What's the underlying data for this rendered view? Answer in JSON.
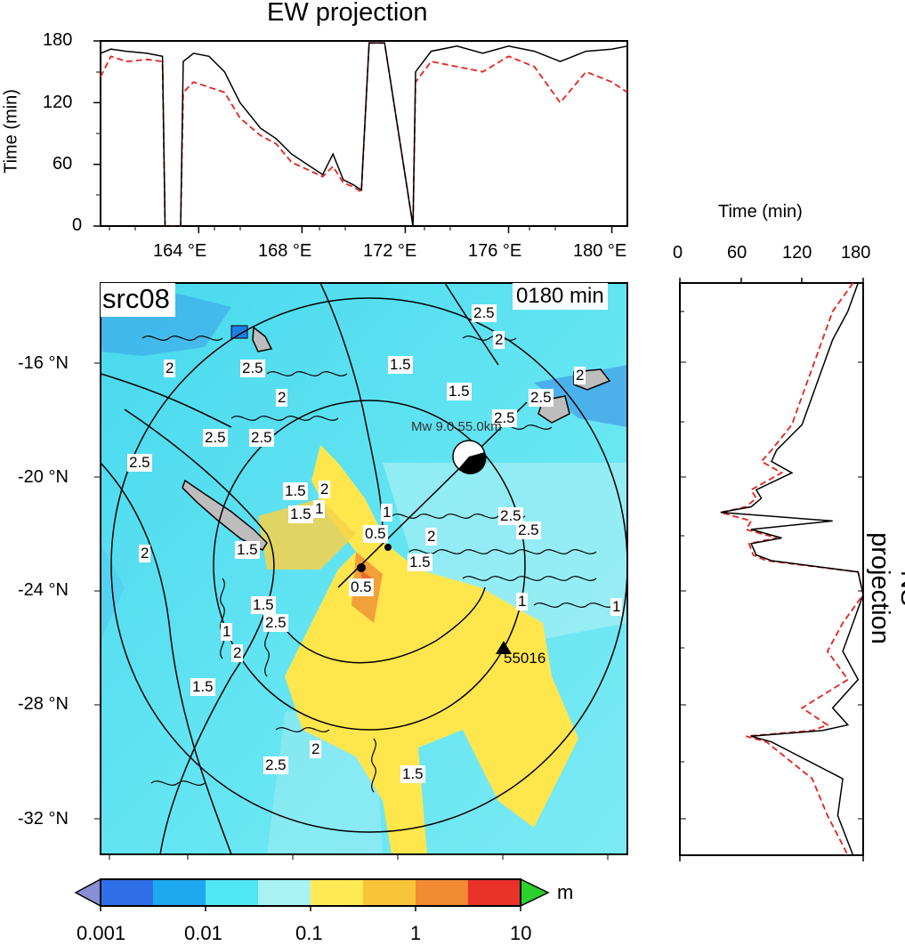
{
  "top_panel": {
    "title": "EW projection",
    "ylabel": "Time (min)",
    "yticks": [
      "0",
      "60",
      "120",
      "180"
    ],
    "xticks": [
      "164 °E",
      "168 °E",
      "172 °E",
      "176 °E",
      "180 °E"
    ]
  },
  "side_panel": {
    "title": "NS projection",
    "xlabel": "Time (min)",
    "xticks": [
      "0",
      "60",
      "120",
      "180"
    ]
  },
  "map": {
    "source_label": "src08",
    "time_label": "0180 min",
    "yticks": [
      "-16 °N",
      "-20 °N",
      "-24 °N",
      "-28 °N",
      "-32 °N"
    ],
    "event_label": "Mw 9.0 55.0km",
    "station_label": "55016",
    "contour_labels": [
      "2.5",
      "2",
      "1.5",
      "2",
      "2.5",
      "2",
      "1.5",
      "2.5",
      "2",
      "2.5",
      "2.5",
      "2.5",
      "2.5",
      "2",
      "1.5",
      "1",
      "1.5",
      "0.5",
      "1",
      "2.5",
      "2",
      "2.5",
      "1.5",
      "0.5",
      "1.5",
      "2",
      "1",
      "2",
      "1.5",
      "2.5",
      "2",
      "1.5",
      "1",
      "2.5",
      "1",
      "2",
      "1.5"
    ]
  },
  "colorbar": {
    "unit": "m",
    "ticks": [
      "0.001",
      "0.01",
      "0.1",
      "1",
      "10"
    ],
    "colors": [
      "#2f6fe8",
      "#1ea8f0",
      "#50e6f2",
      "#a8f2f4",
      "#ffea55",
      "#f8c43a",
      "#f28a33",
      "#e8322a"
    ]
  },
  "chart_data": [
    {
      "type": "line",
      "title": "EW projection",
      "xlabel": "",
      "ylabel": "Time (min)",
      "xlim": [
        160.2,
        180.6
      ],
      "ylim": [
        0,
        180
      ],
      "series": [
        {
          "x": [
            160.2,
            160.6,
            161.2,
            162.0,
            162.6,
            162.7,
            163.3,
            163.4,
            163.8,
            164.4,
            165.0,
            165.6,
            166.4,
            167.0,
            167.6,
            168.2,
            168.8,
            169.2,
            169.6,
            170.0,
            170.3,
            170.6,
            171.2,
            172.3,
            172.4,
            173.0,
            174.0,
            175.0,
            176.0,
            177.0,
            178.0,
            179.0,
            180.0,
            180.6
          ],
          "y": [
            168,
            172,
            170,
            168,
            165,
            0,
            0,
            160,
            168,
            165,
            150,
            120,
            95,
            85,
            70,
            60,
            50,
            70,
            45,
            40,
            35,
            178,
            178,
            0,
            150,
            170,
            175,
            168,
            175,
            170,
            160,
            170,
            172,
            175
          ]
        },
        {
          "x": [
            160.2,
            160.6,
            161.2,
            162.0,
            162.6,
            162.7,
            163.3,
            163.4,
            163.8,
            164.4,
            165.0,
            165.6,
            166.4,
            167.0,
            167.6,
            168.2,
            168.8,
            169.2,
            169.6,
            170.0,
            170.3,
            170.6,
            171.2,
            172.3,
            172.4,
            173.0,
            174.0,
            175.0,
            176.0,
            177.0,
            178.0,
            179.0,
            180.0,
            180.6
          ],
          "y": [
            145,
            165,
            160,
            162,
            160,
            0,
            0,
            130,
            140,
            135,
            130,
            105,
            88,
            80,
            62,
            55,
            48,
            58,
            42,
            38,
            33,
            178,
            178,
            0,
            140,
            160,
            155,
            150,
            165,
            155,
            120,
            150,
            140,
            130
          ]
        }
      ]
    },
    {
      "type": "line",
      "title": "NS projection",
      "xlabel": "Time (min)",
      "ylabel": "",
      "xlim": [
        0,
        180
      ],
      "ylim": [
        -33.2,
        -13.0
      ],
      "series": [
        {
          "t": [
            175,
            165,
            150,
            140,
            130,
            120,
            95,
            90,
            110,
            75,
            80,
            70,
            40,
            150,
            70,
            100,
            70,
            75,
            90,
            175,
            180,
            170,
            160,
            175,
            150,
            165,
            140,
            70,
            90,
            160,
            155,
            170
          ],
          "lat": [
            -13.0,
            -14.0,
            -15.0,
            -16.0,
            -17.0,
            -18.0,
            -18.9,
            -19.3,
            -19.7,
            -20.3,
            -20.6,
            -20.9,
            -21.1,
            -21.4,
            -21.7,
            -22.0,
            -22.2,
            -22.6,
            -22.8,
            -23.2,
            -24.0,
            -25.0,
            -26.0,
            -27.0,
            -28.0,
            -28.6,
            -28.8,
            -29.0,
            -29.2,
            -30.5,
            -31.8,
            -33.2
          ]
        },
        {
          "t": [
            170,
            150,
            140,
            130,
            120,
            110,
            90,
            80,
            100,
            70,
            75,
            65,
            40,
            70,
            65,
            95,
            68,
            72,
            85,
            175,
            180,
            160,
            145,
            165,
            120,
            145,
            130,
            65,
            85,
            130,
            145,
            165
          ],
          "lat": [
            -13.0,
            -14.0,
            -15.0,
            -16.0,
            -17.0,
            -18.0,
            -18.9,
            -19.3,
            -19.7,
            -20.3,
            -20.6,
            -20.9,
            -21.1,
            -21.4,
            -21.7,
            -22.0,
            -22.2,
            -22.6,
            -22.8,
            -23.2,
            -24.0,
            -25.0,
            -26.0,
            -27.0,
            -28.0,
            -28.6,
            -28.8,
            -29.0,
            -29.2,
            -30.5,
            -31.8,
            -33.2
          ]
        }
      ]
    }
  ]
}
